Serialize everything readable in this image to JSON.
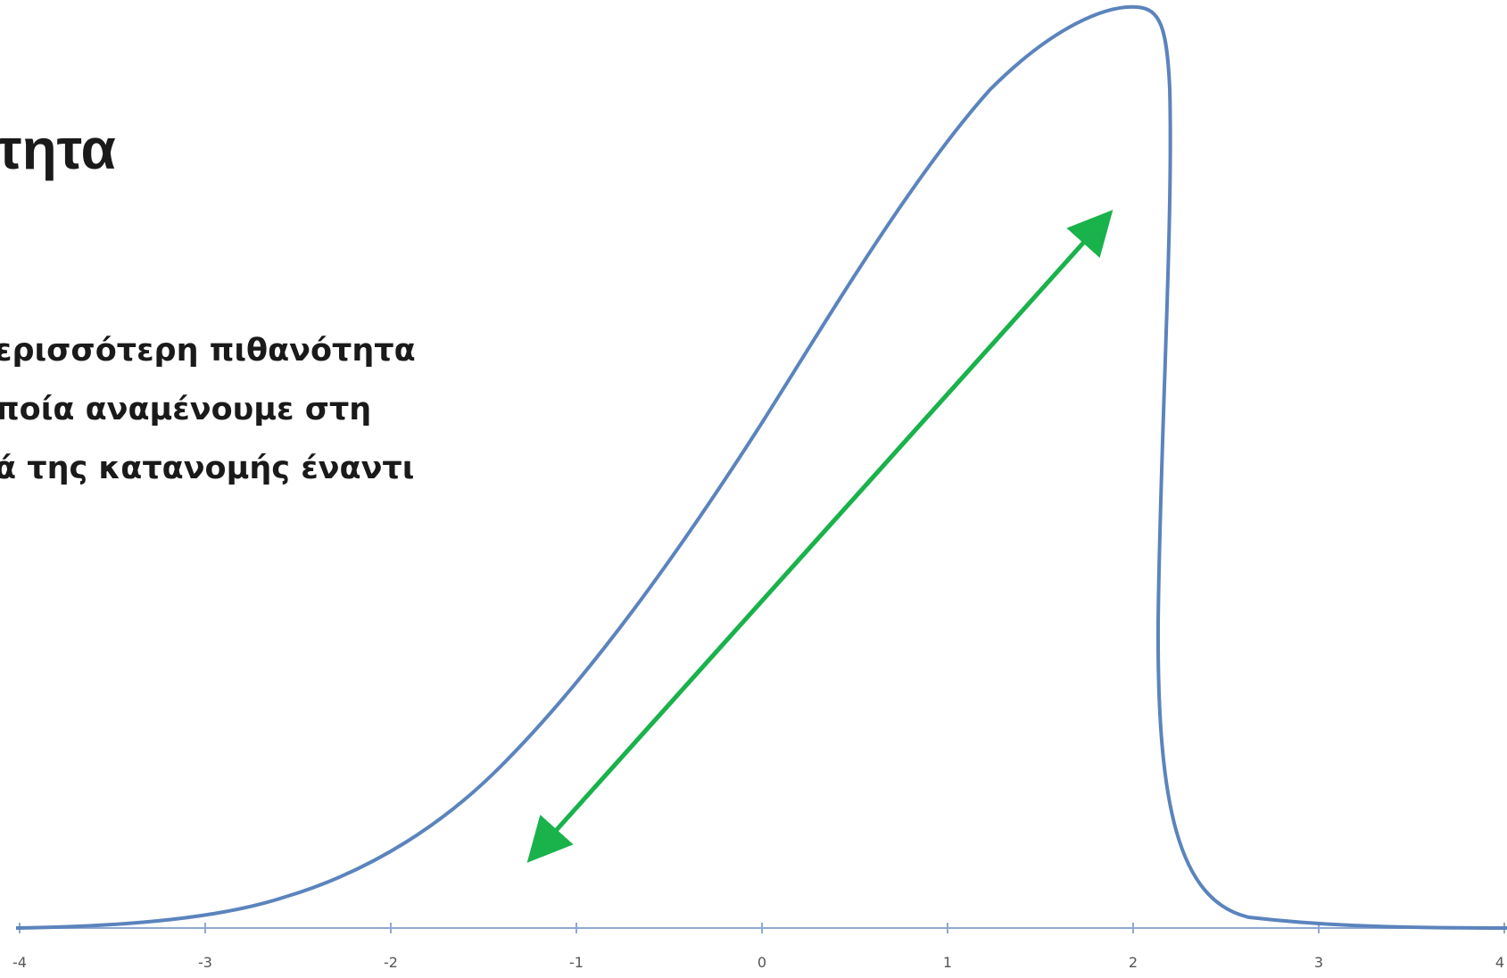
{
  "slide": {
    "title": "τητα",
    "body_lines": [
      "ερισσότερη πιθανότητα",
      "ποία αναμένουμε στη",
      "ά της κατανομής έναντι"
    ]
  },
  "colors": {
    "curve": "#5b84bd",
    "axis": "#8ea9d3",
    "arrow": "#19b24b",
    "text": "#1a1a1a"
  },
  "chart_data": {
    "type": "line",
    "x_ticks": [
      "-4",
      "-3",
      "-2",
      "-1",
      "0",
      "1",
      "2",
      "3",
      "4"
    ],
    "xlim": [
      -4,
      4
    ],
    "curve": "left-skewed density: long left tail rising from -4, sharp peak near x = 2, steep drop to baseline by 3",
    "annotation": "double-headed green arrow along the long left tail, pointing down-left and up-right"
  }
}
